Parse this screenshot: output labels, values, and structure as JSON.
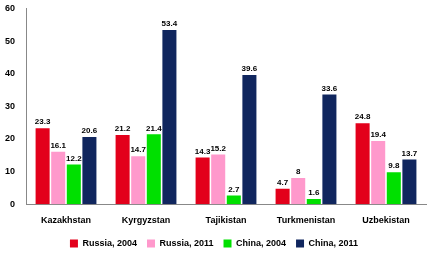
{
  "chart_data": {
    "type": "bar",
    "categories": [
      "Kazakhstan",
      "Kyrgyzstan",
      "Tajikistan",
      "Turkmenistan",
      "Uzbekistan"
    ],
    "series": [
      {
        "name": "Russia, 2004",
        "color": "#e3001b",
        "values": [
          23.3,
          21.2,
          14.3,
          4.7,
          24.8
        ]
      },
      {
        "name": "Russia, 2011",
        "color": "#ff99cc",
        "values": [
          16.1,
          14.7,
          15.2,
          8,
          19.4
        ]
      },
      {
        "name": "China, 2004",
        "color": "#00e000",
        "values": [
          12.2,
          21.4,
          2.7,
          1.6,
          9.8
        ]
      },
      {
        "name": "China, 2011",
        "color": "#10265e",
        "values": [
          20.6,
          53.4,
          39.6,
          33.6,
          13.7
        ]
      }
    ],
    "ylim": [
      0,
      60
    ],
    "yticks": [
      0,
      10,
      20,
      30,
      40,
      50,
      60
    ],
    "grid": false,
    "legend": "bottom",
    "data_labels": true
  }
}
